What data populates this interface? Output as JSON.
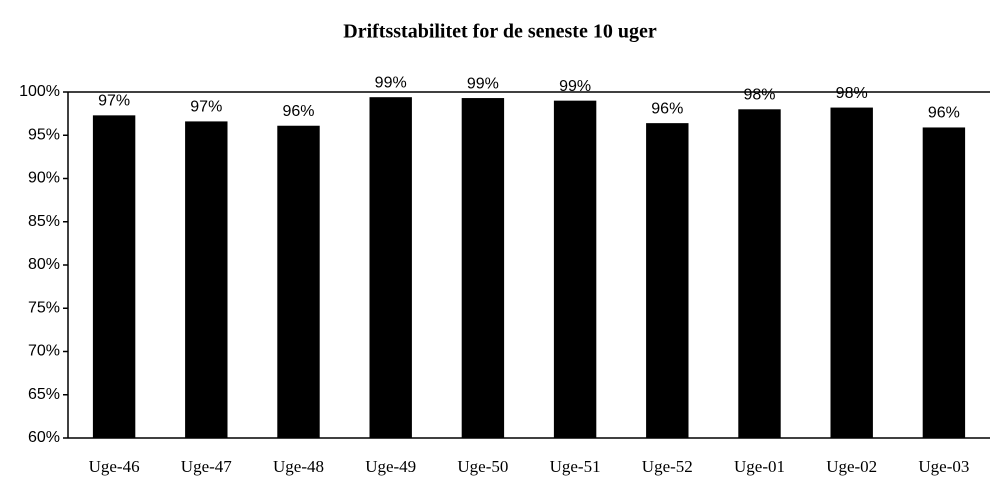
{
  "chart_data": {
    "type": "bar",
    "title": "Driftsstabilitet for de seneste 10 uger",
    "categories": [
      "Uge-46",
      "Uge-47",
      "Uge-48",
      "Uge-49",
      "Uge-50",
      "Uge-51",
      "Uge-52",
      "Uge-01",
      "Uge-02",
      "Uge-03"
    ],
    "values": [
      97.3,
      96.6,
      96.1,
      99.4,
      99.3,
      99.0,
      96.4,
      98.0,
      98.2,
      95.9
    ],
    "value_labels": [
      "97%",
      "97%",
      "96%",
      "99%",
      "99%",
      "99%",
      "96%",
      "98%",
      "98%",
      "96%"
    ],
    "color": "#000000",
    "ylim": [
      60,
      100
    ],
    "yticks": [
      {
        "value": 60,
        "label": "60%"
      },
      {
        "value": 65,
        "label": "65%"
      },
      {
        "value": 70,
        "label": "70%"
      },
      {
        "value": 75,
        "label": "75%"
      },
      {
        "value": 80,
        "label": "80%"
      },
      {
        "value": 85,
        "label": "85%"
      },
      {
        "value": 90,
        "label": "90%"
      },
      {
        "value": 95,
        "label": "95%"
      },
      {
        "value": 100,
        "label": "100%"
      }
    ],
    "grid": false
  }
}
